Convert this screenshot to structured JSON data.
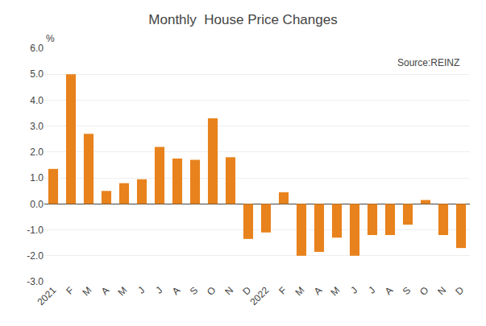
{
  "chart_data": {
    "type": "bar",
    "title": "Monthly  House Price Changes",
    "annotations": [
      "%",
      "Source:REINZ"
    ],
    "categories": [
      "2021",
      "F",
      "M",
      "A",
      "M",
      "J",
      "J",
      "A",
      "S",
      "O",
      "N",
      "D",
      "2022",
      "F",
      "M",
      "A",
      "M",
      "J",
      "J",
      "A",
      "S",
      "O",
      "N",
      "D"
    ],
    "values": [
      1.35,
      5.0,
      2.7,
      0.5,
      0.8,
      0.95,
      2.2,
      1.75,
      1.7,
      3.3,
      1.8,
      -1.35,
      -1.1,
      0.45,
      -2.0,
      -1.85,
      -1.3,
      -2.0,
      -1.2,
      -1.2,
      -0.8,
      0.15,
      -1.2,
      -1.7
    ],
    "color": "#E8821C",
    "ylim": [
      -3.0,
      6.0
    ],
    "yticks": [
      {
        "value": -3.0,
        "label": "-3.0"
      },
      {
        "value": -2.0,
        "label": "-2.0"
      },
      {
        "value": -1.0,
        "label": "-1.0"
      },
      {
        "value": 0.0,
        "label": "0.0"
      },
      {
        "value": 1.0,
        "label": "1.0"
      },
      {
        "value": 2.0,
        "label": "2.0"
      },
      {
        "value": 3.0,
        "label": "3.0"
      },
      {
        "value": 4.0,
        "label": "4.0"
      },
      {
        "value": 5.0,
        "label": "5.0"
      },
      {
        "value": 6.0,
        "label": "6.0"
      }
    ],
    "grid": true
  }
}
